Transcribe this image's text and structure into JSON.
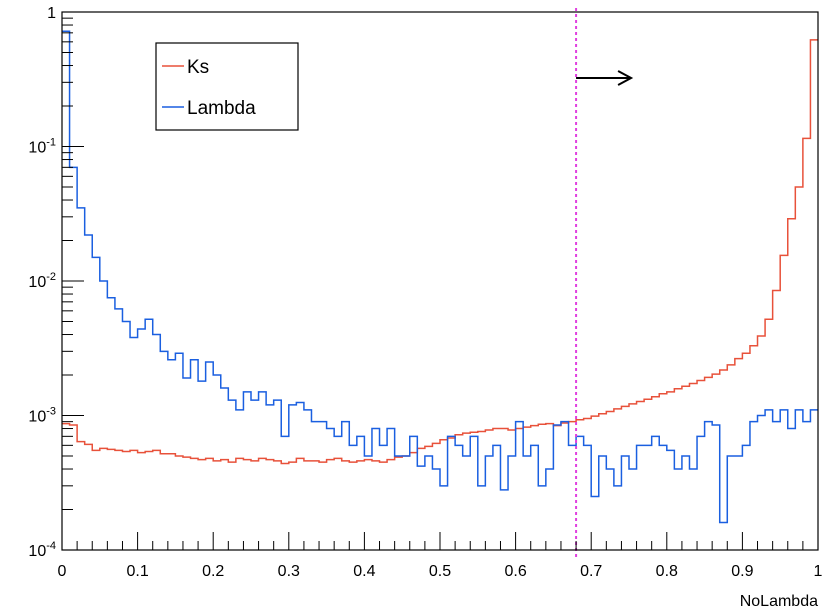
{
  "chart_data": {
    "type": "line",
    "title": "",
    "xlabel": "NoLambda",
    "ylabel": "",
    "xlim": [
      0,
      1
    ],
    "ylim": [
      0.0001,
      1
    ],
    "y_scale": "log",
    "grid": false,
    "legend_position": "top-left",
    "x_ticks": [
      {
        "value": 0,
        "label": "0"
      },
      {
        "value": 0.1,
        "label": "0.1"
      },
      {
        "value": 0.2,
        "label": "0.2"
      },
      {
        "value": 0.3,
        "label": "0.3"
      },
      {
        "value": 0.4,
        "label": "0.4"
      },
      {
        "value": 0.5,
        "label": "0.5"
      },
      {
        "value": 0.6,
        "label": "0.6"
      },
      {
        "value": 0.7,
        "label": "0.7"
      },
      {
        "value": 0.8,
        "label": "0.8"
      },
      {
        "value": 0.9,
        "label": "0.9"
      },
      {
        "value": 1,
        "label": "1"
      }
    ],
    "y_ticks": [
      {
        "value": 0.0001,
        "base": "10",
        "exp": "-4"
      },
      {
        "value": 0.001,
        "base": "10",
        "exp": "-3"
      },
      {
        "value": 0.01,
        "base": "10",
        "exp": "-2"
      },
      {
        "value": 0.1,
        "base": "10",
        "exp": "-1"
      },
      {
        "value": 1,
        "base": "1",
        "exp": ""
      }
    ],
    "bin_edges_range": [
      0,
      1
    ],
    "bin_count": 100,
    "series": [
      {
        "name": "Ks",
        "color": "#e8513a",
        "values": [
          0.00087,
          0.00085,
          0.00064,
          0.00061,
          0.00055,
          0.00057,
          0.00056,
          0.00055,
          0.00054,
          0.00055,
          0.00053,
          0.00054,
          0.00055,
          0.00052,
          0.00052,
          0.0005,
          0.00049,
          0.00048,
          0.00047,
          0.00048,
          0.00046,
          0.00047,
          0.00045,
          0.00048,
          0.00047,
          0.00046,
          0.00048,
          0.00047,
          0.00046,
          0.00044,
          0.00045,
          0.00048,
          0.00046,
          0.00046,
          0.00045,
          0.00047,
          0.00048,
          0.00046,
          0.00045,
          0.00046,
          0.00047,
          0.00046,
          0.00045,
          0.00047,
          0.00049,
          0.0005,
          0.00053,
          0.00057,
          0.00059,
          0.00062,
          0.00066,
          0.00068,
          0.00072,
          0.00074,
          0.00075,
          0.00076,
          0.00078,
          0.0008,
          0.0008,
          0.00078,
          0.0008,
          0.00082,
          0.00084,
          0.00086,
          0.00087,
          0.00084,
          0.00088,
          0.0009,
          0.00093,
          0.00095,
          0.00099,
          0.00103,
          0.00107,
          0.00112,
          0.00117,
          0.00122,
          0.00127,
          0.00132,
          0.00138,
          0.00145,
          0.0015,
          0.00158,
          0.00165,
          0.00173,
          0.00182,
          0.00192,
          0.00203,
          0.00218,
          0.00238,
          0.00265,
          0.0029,
          0.0033,
          0.0039,
          0.0052,
          0.0085,
          0.0155,
          0.029,
          0.05,
          0.115,
          0.62
        ]
      },
      {
        "name": "Lambda",
        "color": "#1a5fe0",
        "values": [
          0.72,
          0.07,
          0.035,
          0.022,
          0.015,
          0.01,
          0.0075,
          0.0062,
          0.005,
          0.0038,
          0.0044,
          0.0052,
          0.004,
          0.003,
          0.0026,
          0.0029,
          0.0019,
          0.0026,
          0.0018,
          0.0025,
          0.002,
          0.0016,
          0.0013,
          0.0011,
          0.0015,
          0.0013,
          0.0015,
          0.0012,
          0.0013,
          0.0007,
          0.0012,
          0.00125,
          0.0011,
          0.0009,
          0.0009,
          0.0008,
          0.0007,
          0.0009,
          0.0006,
          0.0007,
          0.0005,
          0.0008,
          0.0006,
          0.0008,
          0.0005,
          0.0005,
          0.0007,
          0.00042,
          0.0005,
          0.0004,
          0.0003,
          0.0007,
          0.0006,
          0.0005,
          0.0007,
          0.0003,
          0.0005,
          0.0006,
          0.00028,
          0.0005,
          0.0009,
          0.0005,
          0.0006,
          0.0003,
          0.0004,
          0.00085,
          0.0009,
          0.0006,
          0.0007,
          0.0006,
          0.00025,
          0.0005,
          0.0004,
          0.0003,
          0.0005,
          0.0004,
          0.0006,
          0.0006,
          0.0007,
          0.0006,
          0.00055,
          0.0004,
          0.0005,
          0.0004,
          0.0007,
          0.0009,
          0.00085,
          0.00016,
          0.0005,
          0.0005,
          0.0006,
          0.0009,
          0.001,
          0.0011,
          0.0009,
          0.0011,
          0.0008,
          0.0011,
          0.0009,
          0.0011
        ]
      }
    ],
    "annotations": {
      "cut_value": 0.68,
      "cut_line_color": "#e040e0",
      "arrow_direction": "right",
      "arrow_color": "#000000"
    }
  }
}
